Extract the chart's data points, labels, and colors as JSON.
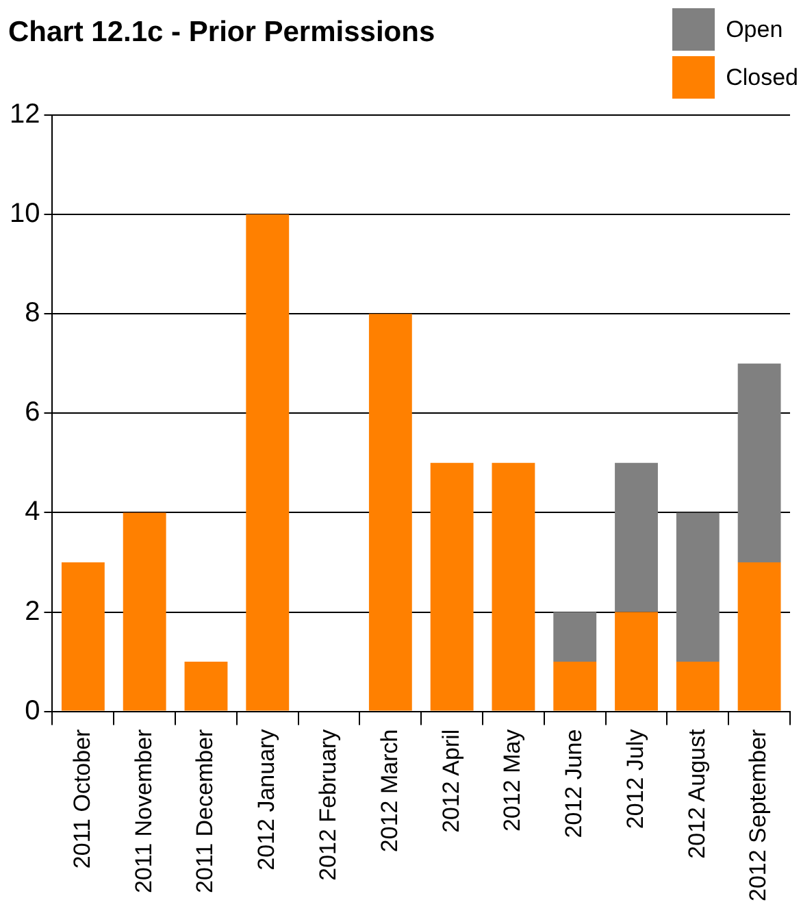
{
  "chart_data": {
    "type": "bar",
    "title": "Chart 12.1c - Prior Permissions",
    "categories": [
      "2011 October",
      "2011 November",
      "2011 December",
      "2012 January",
      "2012 February",
      "2012 March",
      "2012 April",
      "2012 May",
      "2012 June",
      "2012 July",
      "2012 August",
      "2012 September"
    ],
    "series": [
      {
        "name": "Closed",
        "color": "#ff8000",
        "values": [
          3,
          4,
          1,
          10,
          0,
          8,
          5,
          5,
          1,
          2,
          1,
          3
        ]
      },
      {
        "name": "Open",
        "color": "#808080",
        "values": [
          0,
          0,
          0,
          0,
          0,
          0,
          0,
          0,
          1,
          3,
          3,
          4
        ]
      }
    ],
    "stacked": true,
    "ylim": [
      0,
      12
    ],
    "yticks": [
      0,
      2,
      4,
      6,
      8,
      10,
      12
    ],
    "grid": "y",
    "legend": "top right"
  }
}
